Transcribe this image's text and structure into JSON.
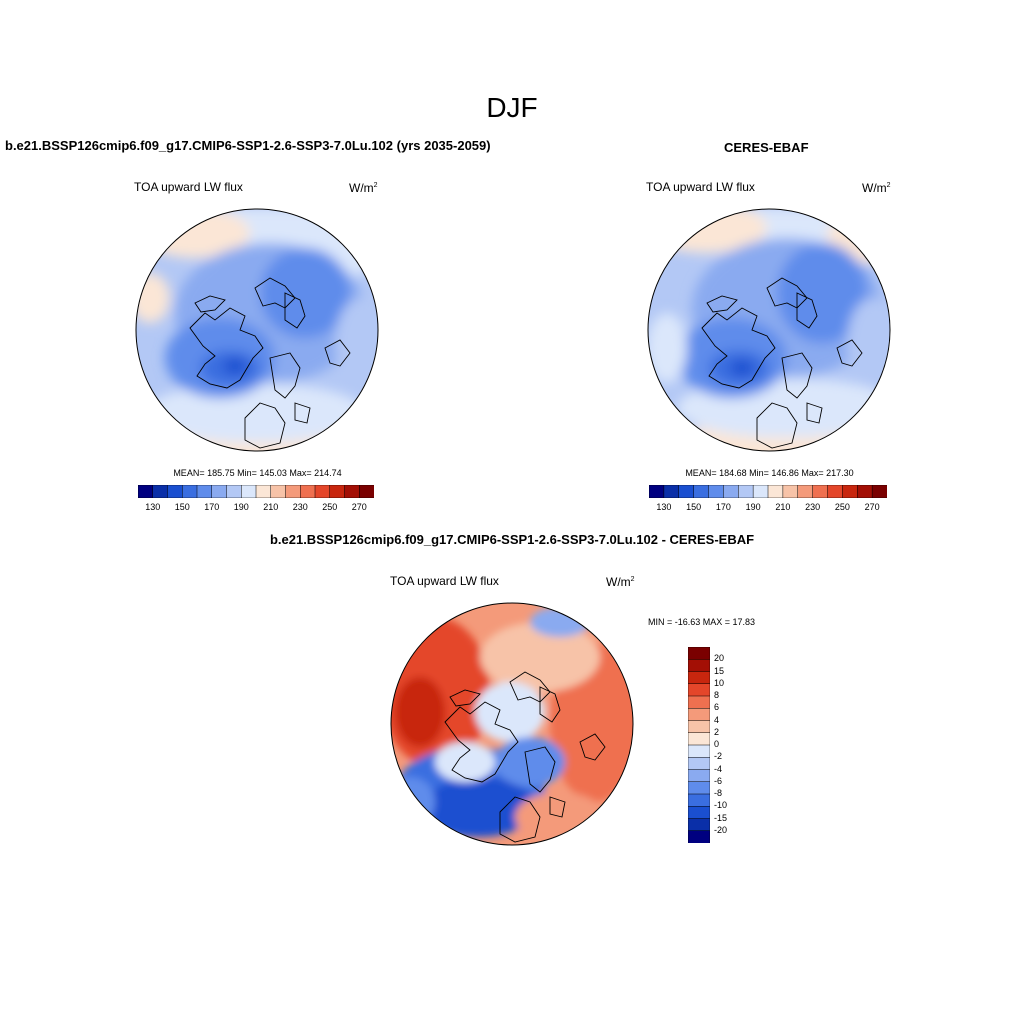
{
  "figure": {
    "season": "DJF",
    "variable": "TOA upward LW flux",
    "units": "W/m",
    "units_exponent": "2"
  },
  "panels": [
    {
      "title": "b.e21.BSSP126cmip6.f09_g17.CMIP6-SSP1-2.6-SSP3-7.0Lu.102 (yrs 2035-2059)",
      "stats": "MEAN= 185.75  Min= 145.03  Max= 214.74"
    },
    {
      "title": "CERES-EBAF",
      "stats": "MEAN= 184.68  Min= 146.86  Max= 217.30"
    },
    {
      "title": "b.e21.BSSP126cmip6.f09_g17.CMIP6-SSP1-2.6-SSP3-7.0Lu.102 - CERES-EBAF",
      "stats": "MIN = -16.63 MAX =  17.83"
    }
  ],
  "abs_colorbar": {
    "colors": [
      "#000080",
      "#0a2fa8",
      "#1a4fd0",
      "#3a6ee0",
      "#5f8ceb",
      "#8aaaf0",
      "#b3c8f5",
      "#dbe7fb",
      "#fbe6d6",
      "#f7c3a8",
      "#f49a7a",
      "#ef7050",
      "#e4462a",
      "#c8260e",
      "#a30f05",
      "#7a0000"
    ],
    "tick_labels": [
      "130",
      "150",
      "170",
      "190",
      "210",
      "230",
      "250",
      "270"
    ]
  },
  "diff_colorbar": {
    "colors": [
      "#7a0000",
      "#a30f05",
      "#c8260e",
      "#e4462a",
      "#ef7050",
      "#f49a7a",
      "#f7c3a8",
      "#fbe6d6",
      "#dbe7fb",
      "#b3c8f5",
      "#8aaaf0",
      "#5f8ceb",
      "#3a6ee0",
      "#1a4fd0",
      "#0a2fa8",
      "#000080"
    ],
    "tick_labels": [
      "20",
      "15",
      "10",
      "8",
      "6",
      "4",
      "2",
      "0",
      "-2",
      "-4",
      "-6",
      "-8",
      "-10",
      "-15",
      "-20"
    ]
  }
}
